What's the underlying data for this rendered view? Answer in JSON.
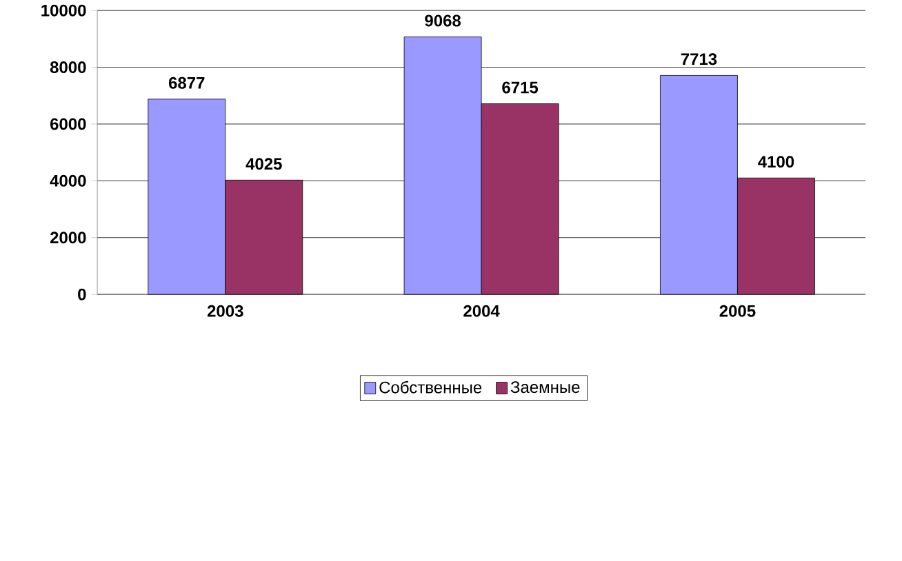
{
  "chart_data": {
    "type": "bar",
    "categories": [
      "2003",
      "2004",
      "2005"
    ],
    "series": [
      {
        "name": "Собственные",
        "color": "#9999ff",
        "values": [
          6877,
          9068,
          7713
        ]
      },
      {
        "name": "Заемные",
        "color": "#993366",
        "values": [
          4025,
          6715,
          4100
        ]
      }
    ],
    "ylim": [
      0,
      10000
    ],
    "yticks": [
      0,
      2000,
      4000,
      6000,
      8000,
      10000
    ],
    "grid": "y",
    "legend": "bottom",
    "data_labels": true
  }
}
